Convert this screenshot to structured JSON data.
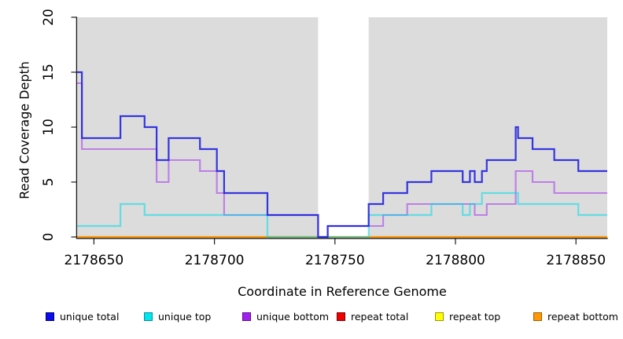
{
  "figure": {
    "background": "#ffffff"
  },
  "chart_data": {
    "type": "line",
    "subtype": "step-post",
    "title": "",
    "xlabel": "Coordinate in Reference Genome",
    "ylabel": "Read Coverage Depth",
    "xlim": [
      2178643,
      2178863
    ],
    "ylim": [
      0,
      20
    ],
    "x_ticks": [
      2178650,
      2178700,
      2178750,
      2178800,
      2178850
    ],
    "y_ticks": [
      0,
      5,
      10,
      15,
      20
    ],
    "grid": false,
    "plot_background": "#dcdcdc",
    "unshaded_gap": {
      "x_start": 2178743,
      "x_end": 2178764,
      "color": "#ffffff"
    },
    "legend_position": "bottom",
    "axis_color": "#1a1a1a",
    "draw_order": [
      "repeat total",
      "repeat top",
      "repeat bottom",
      "unique bottom",
      "unique top",
      "unique total"
    ],
    "series": [
      {
        "name": "unique total",
        "line_color": "#2626de",
        "line_opacity": 0.92,
        "line_width": 2.2,
        "legend_fill": "#0b0bef",
        "legend_border": "#00007a",
        "points": [
          [
            2178643,
            15
          ],
          [
            2178645,
            9
          ],
          [
            2178661,
            11
          ],
          [
            2178671,
            10
          ],
          [
            2178676,
            7
          ],
          [
            2178681,
            9
          ],
          [
            2178694,
            8
          ],
          [
            2178701,
            6
          ],
          [
            2178704,
            4
          ],
          [
            2178722,
            2
          ],
          [
            2178743,
            0
          ],
          [
            2178747,
            1
          ],
          [
            2178764,
            3
          ],
          [
            2178770,
            4
          ],
          [
            2178780,
            5
          ],
          [
            2178790,
            6
          ],
          [
            2178803,
            5
          ],
          [
            2178806,
            6
          ],
          [
            2178808,
            5
          ],
          [
            2178811,
            6
          ],
          [
            2178813,
            7
          ],
          [
            2178825,
            10
          ],
          [
            2178826,
            9
          ],
          [
            2178832,
            8
          ],
          [
            2178841,
            7
          ],
          [
            2178851,
            6
          ],
          [
            2178863,
            6
          ]
        ]
      },
      {
        "name": "unique top",
        "line_color": "#00dce8",
        "line_opacity": 0.55,
        "line_width": 2.2,
        "legend_fill": "#00e5ee",
        "legend_border": "#008f9b",
        "points": [
          [
            2178643,
            1
          ],
          [
            2178661,
            3
          ],
          [
            2178671,
            2
          ],
          [
            2178722,
            0
          ],
          [
            2178764,
            2
          ],
          [
            2178790,
            3
          ],
          [
            2178803,
            2
          ],
          [
            2178806,
            3
          ],
          [
            2178811,
            4
          ],
          [
            2178826,
            3
          ],
          [
            2178851,
            2
          ],
          [
            2178863,
            2
          ]
        ]
      },
      {
        "name": "unique bottom",
        "line_color": "#a020f0",
        "line_opacity": 0.5,
        "line_width": 2.1,
        "legend_fill": "#a020f0",
        "legend_border": "#5a0f8e",
        "points": [
          [
            2178643,
            14
          ],
          [
            2178645,
            8
          ],
          [
            2178676,
            5
          ],
          [
            2178681,
            7
          ],
          [
            2178694,
            6
          ],
          [
            2178701,
            4
          ],
          [
            2178704,
            2
          ],
          [
            2178743,
            0
          ],
          [
            2178747,
            1
          ],
          [
            2178770,
            2
          ],
          [
            2178780,
            3
          ],
          [
            2178808,
            2
          ],
          [
            2178813,
            3
          ],
          [
            2178825,
            6
          ],
          [
            2178832,
            5
          ],
          [
            2178841,
            4
          ],
          [
            2178863,
            4
          ]
        ]
      },
      {
        "name": "repeat total",
        "line_color": "#e10000",
        "line_opacity": 1,
        "line_width": 2,
        "legend_fill": "#ee0000",
        "legend_border": "#800000",
        "points": [
          [
            2178643,
            0
          ],
          [
            2178863,
            0
          ]
        ]
      },
      {
        "name": "repeat top",
        "line_color": "#ffff00",
        "line_opacity": 1,
        "line_width": 2,
        "legend_fill": "#ffff00",
        "legend_border": "#999900",
        "points": [
          [
            2178643,
            0
          ],
          [
            2178863,
            0
          ]
        ]
      },
      {
        "name": "repeat bottom",
        "line_color": "#ff9500",
        "line_opacity": 1,
        "line_width": 2.2,
        "legend_fill": "#ff9800",
        "legend_border": "#a35f00",
        "points": [
          [
            2178643,
            0
          ],
          [
            2178863,
            0
          ]
        ]
      }
    ]
  }
}
